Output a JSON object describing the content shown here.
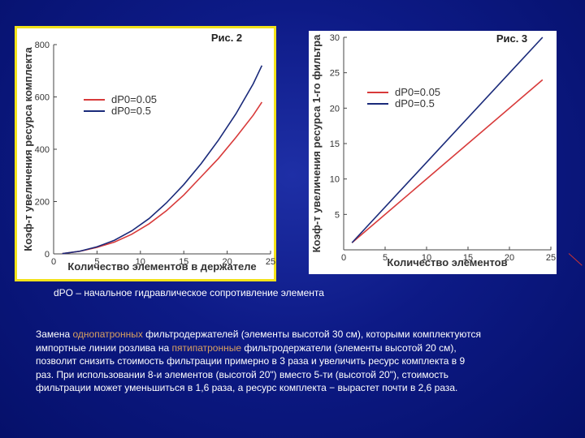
{
  "chart_data": [
    {
      "type": "line",
      "label": "Рис. 2",
      "xlabel": "Количество элементов в держателе",
      "ylabel": "Коэф-т увеличения ресурса комплекта",
      "xlim": [
        0,
        25
      ],
      "ylim": [
        0,
        800
      ],
      "xticks": [
        0,
        5,
        10,
        15,
        20,
        25
      ],
      "yticks": [
        0,
        200,
        400,
        600,
        800
      ],
      "legend": "top-left",
      "series": [
        {
          "name": "dP0=0.05",
          "color": "#d83a3a",
          "x": [
            1,
            3,
            5,
            7,
            9,
            11,
            13,
            15,
            17,
            19,
            21,
            23,
            24
          ],
          "y": [
            1,
            10,
            25,
            45,
            75,
            115,
            165,
            225,
            295,
            365,
            445,
            530,
            580
          ]
        },
        {
          "name": "dP0=0.5",
          "color": "#1a2a7a",
          "x": [
            1,
            3,
            5,
            7,
            9,
            11,
            13,
            15,
            17,
            19,
            21,
            23,
            24
          ],
          "y": [
            1,
            10,
            27,
            52,
            88,
            135,
            195,
            265,
            345,
            435,
            535,
            650,
            720
          ]
        }
      ]
    },
    {
      "type": "line",
      "label": "Рис. 3",
      "xlabel": "Количество элементов",
      "ylabel": "Коэф-т увеличения ресурса 1-го фильтра",
      "xlim": [
        0,
        25
      ],
      "ylim": [
        0,
        30
      ],
      "xticks": [
        0,
        5,
        10,
        15,
        20,
        25
      ],
      "yticks": [
        5,
        10,
        15,
        20,
        25,
        30
      ],
      "legend": "top-left",
      "series": [
        {
          "name": "dP0=0.05",
          "color": "#d83a3a",
          "x": [
            1,
            24
          ],
          "y": [
            1,
            24
          ]
        },
        {
          "name": "dP0=0.5",
          "color": "#1a2a7a",
          "x": [
            1,
            24
          ],
          "y": [
            1,
            30
          ]
        }
      ]
    }
  ],
  "caption": "dPO – начальное гидравлическое сопротивление элемента",
  "body": {
    "line1_a": "Замена ",
    "line1_hl": "однопатронных",
    "line1_b": " фильтродержателей (элементы высотой 30 см), которыми комплектуются",
    "line2_a": "импортные линии розлива на ",
    "line2_hl": "пятипатронные",
    "line2_b": " фильтродержатели (элементы высотой 20 см),",
    "line3": "позволит снизить стоимость фильтрации примерно в 3 раза и увеличить ресурс комплекта в 9",
    "line4": "раз. При использовании 8-и элементов (высотой 20\") вместо 5-ти (высотой 20\"), стоимость",
    "line5": "фильтрации может уменьшиться в 1,6 раза, а ресурс комплекта − вырастет почти в 2,6 раза."
  },
  "colors": {
    "background": "#0d1a86",
    "frame": "#f2e21a",
    "highlight": "#d8a060"
  }
}
